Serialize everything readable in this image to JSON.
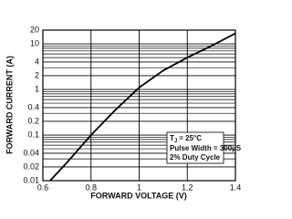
{
  "chart_data": {
    "type": "line",
    "xlabel": "FORWARD VOLTAGE (V)",
    "ylabel": "FORWARD CURRENT (A)",
    "x": [
      0.63,
      0.7,
      0.8,
      0.9,
      1.0,
      1.1,
      1.2,
      1.3,
      1.4
    ],
    "series": [
      {
        "color": "#000000",
        "values": [
          0.01,
          0.025,
          0.1,
          0.35,
          1.1,
          2.6,
          5,
          9,
          17
        ]
      }
    ],
    "xlim": [
      0.6,
      1.4
    ],
    "xticks": [
      0.6,
      0.8,
      1,
      1.2,
      1.4
    ],
    "ylim": [
      0.01,
      20
    ],
    "yticks": [
      20,
      10,
      4,
      2,
      1,
      0.4,
      0.2,
      0.1,
      0.04,
      0.02,
      0.01
    ],
    "yminor": [
      0.03,
      0.05,
      0.06,
      0.07,
      0.08,
      0.09,
      0.3,
      0.5,
      0.6,
      0.7,
      0.8,
      0.9,
      3,
      5,
      6,
      7,
      8,
      9
    ],
    "ylog": true,
    "grid": true,
    "annotation": {
      "symbol": "T",
      "subscript": "J",
      "text": "= 25°C",
      "lines": [
        "Pulse Width = 300µS",
        "2% Duty Cycle"
      ]
    }
  }
}
